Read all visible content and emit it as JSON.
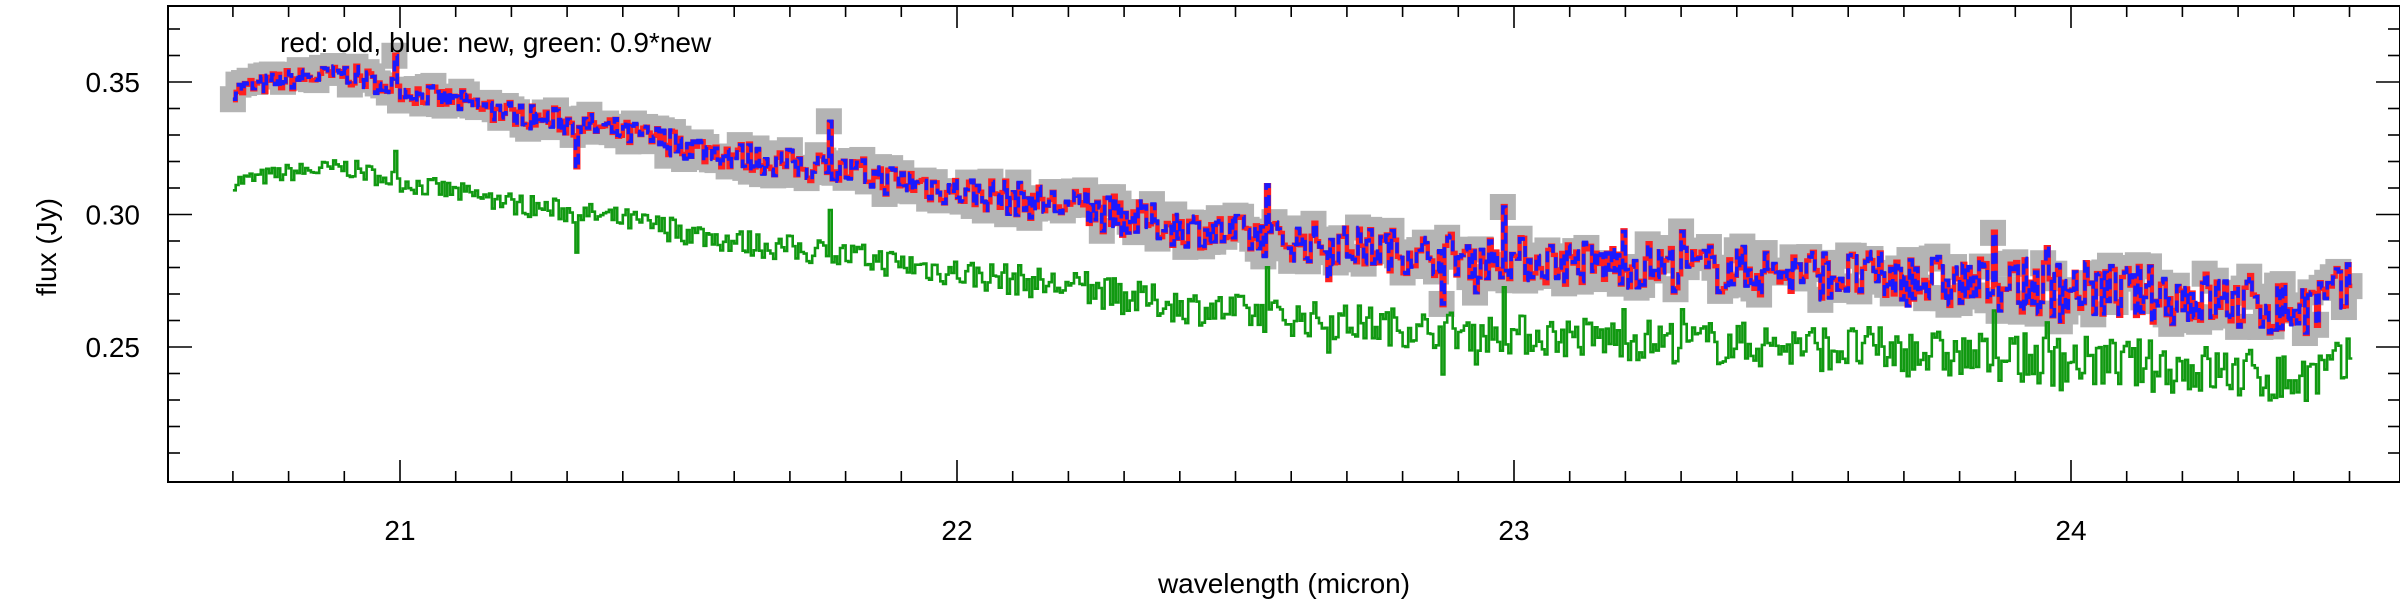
{
  "chart_data": {
    "type": "line",
    "annotation": "red: old, blue: new, green: 0.9*new",
    "xlabel": "wavelength (micron)",
    "ylabel": "flux (Jy)",
    "xlim": [
      20.6,
      24.75
    ],
    "ylim": [
      0.205,
      0.375
    ],
    "x_ticks": [
      21,
      22,
      23,
      24
    ],
    "x_tick_labels": [
      "21",
      "22",
      "23",
      "24"
    ],
    "y_ticks": [
      0.25,
      0.3,
      0.35
    ],
    "y_tick_labels": [
      "0.25",
      "0.30",
      "0.35"
    ],
    "grid": false,
    "colors": {
      "old": "#ff2020",
      "new": "#1a1aff",
      "scaled": "#119911",
      "band": "#b4b4b4",
      "axis": "#000000"
    },
    "series_trend": {
      "x": [
        20.7,
        20.8,
        20.9,
        21.0,
        21.2,
        21.4,
        21.6,
        21.8,
        22.0,
        22.2,
        22.4,
        22.6,
        22.8,
        23.0,
        23.2,
        23.4,
        23.6,
        23.8,
        24.0,
        24.2,
        24.4,
        24.5
      ],
      "new": [
        0.347,
        0.351,
        0.353,
        0.347,
        0.338,
        0.331,
        0.322,
        0.316,
        0.309,
        0.303,
        0.295,
        0.29,
        0.286,
        0.283,
        0.281,
        0.279,
        0.277,
        0.274,
        0.272,
        0.269,
        0.264,
        0.27
      ],
      "scale_factor": 0.9
    }
  }
}
